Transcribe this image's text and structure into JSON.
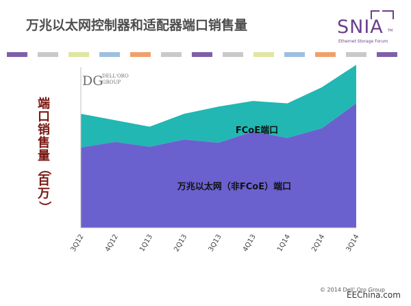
{
  "title": "万兆以太网控制器和适配器端口销售量",
  "logo": {
    "word": "SNIA",
    "tm": "TM",
    "subtitle": "Ethernet Storage Forum"
  },
  "watermark": {
    "mark": "DG",
    "line1": "DELL'ORO",
    "line2": "GROUP"
  },
  "stripe_colors": [
    "#7e5fa8",
    "#c9c9c9",
    "#dfe6a0",
    "#9dbfe0",
    "#f1a06a",
    "#c9c9c9",
    "#7e5fa8",
    "#c9c9c9",
    "#dfe6a0",
    "#9dbfe0",
    "#f1a06a",
    "#c9c9c9",
    "#7e5fa8"
  ],
  "footer": {
    "copyright": "© 2014 Dell' Oro Group",
    "site": "EEChina.com"
  },
  "chart_data": {
    "type": "area",
    "stacked": true,
    "categories": [
      "3Q12",
      "4Q12",
      "1Q13",
      "2Q13",
      "3Q13",
      "4Q13",
      "1Q14",
      "2Q14",
      "3Q14"
    ],
    "ylabel": "端口销售量（百万）",
    "ylabel_chars": [
      "端",
      "口",
      "销",
      "售",
      "量",
      "（",
      "百",
      "万",
      "）"
    ],
    "ylim": [
      0,
      2.0
    ],
    "grid": false,
    "series": [
      {
        "name": "万兆以太网（非FCoE）端口",
        "values": [
          1.0,
          1.07,
          1.01,
          1.1,
          1.06,
          1.2,
          1.12,
          1.24,
          1.55
        ],
        "color": "#6a61cf"
      },
      {
        "name": "FCoE端口",
        "values": [
          0.42,
          0.27,
          0.25,
          0.32,
          0.45,
          0.38,
          0.43,
          0.51,
          0.48
        ],
        "color": "#22b7b2"
      }
    ]
  }
}
